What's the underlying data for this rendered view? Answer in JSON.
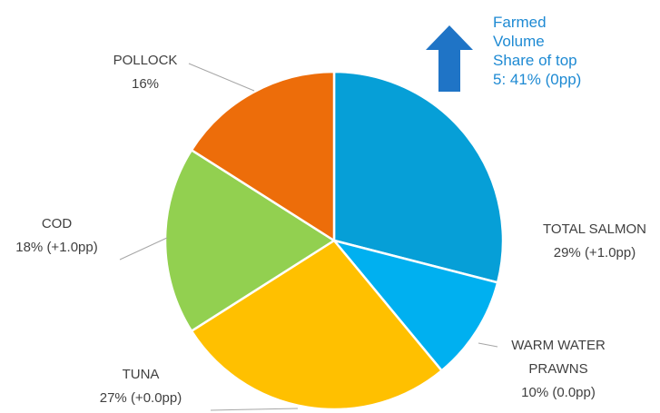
{
  "chart_data": {
    "type": "pie",
    "categories": [
      "TOTAL SALMON",
      "WARM WATER PRAWNS",
      "TUNA",
      "COD",
      "POLLOCK"
    ],
    "values": [
      29,
      10,
      27,
      18,
      16
    ],
    "value_labels": [
      "29% (+1.0pp)",
      "10% (0.0pp)",
      "27% (+0.0pp)",
      "18% (+1.0pp)",
      "16%"
    ],
    "colors": [
      "#069fd7",
      "#00b0f0",
      "#ffc000",
      "#92d050",
      "#ed6d0a"
    ],
    "annotation": [
      "Farmed",
      "Volume",
      "Share of top",
      "5:  41% (0pp)"
    ]
  }
}
